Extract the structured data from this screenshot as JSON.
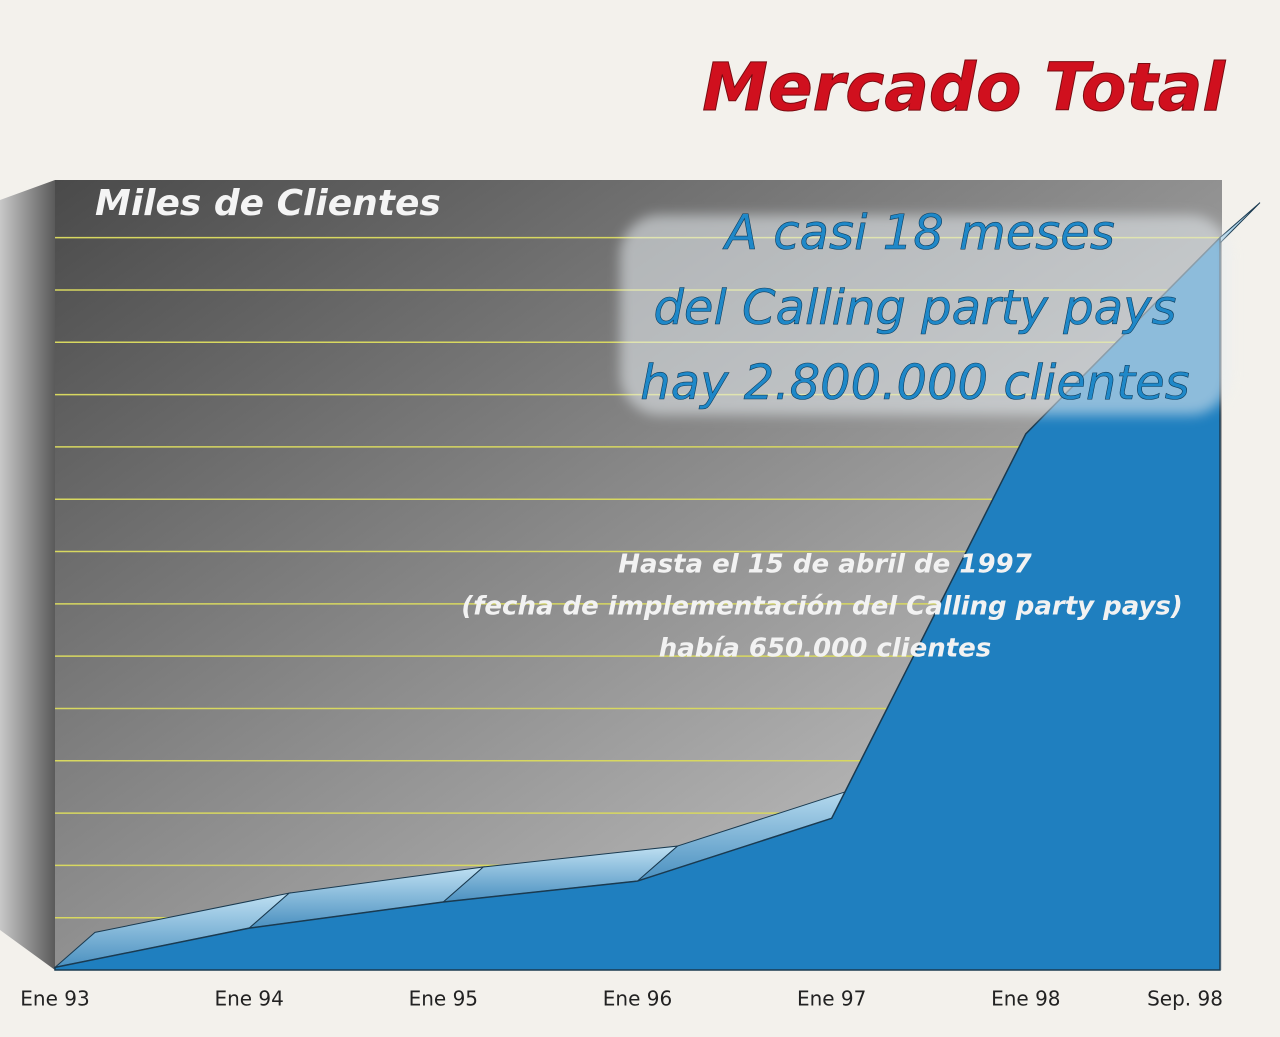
{
  "chart_data": {
    "type": "area",
    "title": "Mercado Total",
    "y_label": "Miles de Clientes",
    "categories": [
      "Ene 93",
      "Ene 94",
      "Ene 95",
      "Ene 96",
      "Ene 97",
      "Ene 98",
      "Sep. 98"
    ],
    "values": [
      10,
      160,
      260,
      340,
      580,
      2050,
      2800
    ],
    "color": "#1f7fbf",
    "ylim": [
      0,
      3000
    ],
    "yticks": [
      200,
      400,
      600,
      800,
      1000,
      1200,
      1400,
      1600,
      1800,
      2000,
      2200,
      2400,
      2600,
      2800
    ],
    "grid": true,
    "grid_color": "#d8d860",
    "annotations": [
      {
        "lines": [
          "A casi 18 meses",
          "del Calling party pays",
          "hay 2.800.000 clientes"
        ]
      },
      {
        "lines": [
          "Hasta el 15 de abril de 1997",
          "(fecha de implementación del Calling party pays)",
          "había 650.000 clientes"
        ]
      }
    ]
  }
}
